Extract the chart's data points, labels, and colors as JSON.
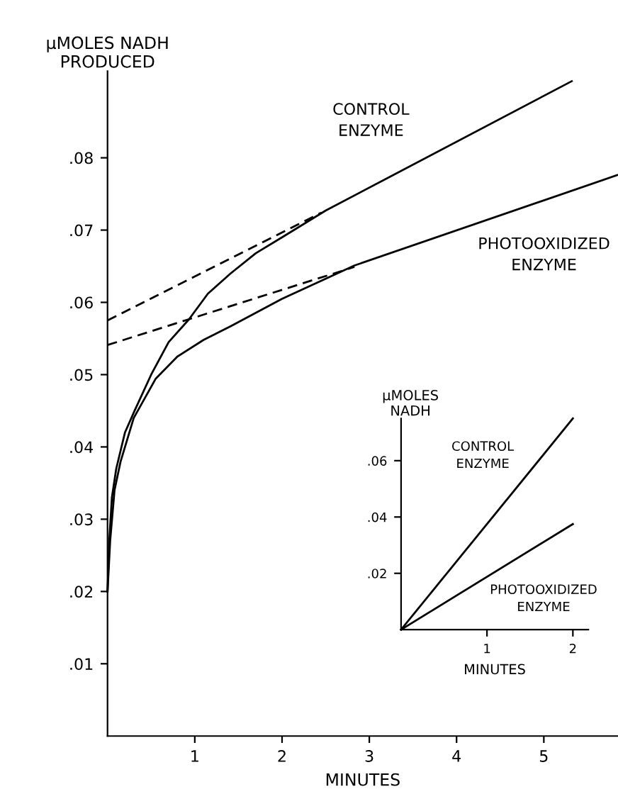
{
  "chart_data": [
    {
      "type": "line",
      "xlabel": "MINUTES",
      "ylabel": "µMOLES NADH\nPRODUCED",
      "xlim": [
        0,
        5.85
      ],
      "ylim": [
        0,
        0.092
      ],
      "xticks": [
        1,
        2,
        3,
        4,
        5
      ],
      "yticks": [
        {
          "value": 0.01,
          "label": ".01"
        },
        {
          "value": 0.02,
          "label": ".02"
        },
        {
          "value": 0.03,
          "label": ".03"
        },
        {
          "value": 0.04,
          "label": ".04"
        },
        {
          "value": 0.05,
          "label": ".05"
        },
        {
          "value": 0.06,
          "label": ".06"
        },
        {
          "value": 0.07,
          "label": ".07"
        },
        {
          "value": 0.08,
          "label": ".08"
        }
      ],
      "grid": false,
      "legend": false,
      "marker": "none",
      "series": [
        {
          "color": "#000000",
          "line_style": "solid",
          "x": [
            0,
            0.02,
            0.05,
            0.1,
            0.2,
            0.31,
            0.5,
            0.7,
            0.93,
            1.15,
            1.41,
            1.7,
            2,
            2.5,
            5.32
          ],
          "values": [
            0.02,
            0.027,
            0.033,
            0.037,
            0.042,
            0.045,
            0.05,
            0.0545,
            0.0576,
            0.0612,
            0.064,
            0.0668,
            0.069,
            0.0727,
            0.0906
          ]
        },
        {
          "color": "#000000",
          "line_style": "solid",
          "x": [
            0,
            0.03,
            0.08,
            0.15,
            0.3,
            0.55,
            0.8,
            1.1,
            1.41,
            2.0,
            2.83,
            5.84
          ],
          "values": [
            0.02,
            0.027,
            0.034,
            0.038,
            0.044,
            0.0494,
            0.0525,
            0.0548,
            0.0567,
            0.0605,
            0.0651,
            0.0776
          ]
        },
        {
          "color": "#000000",
          "line_style": "dashed",
          "x": [
            0,
            2.45
          ],
          "values": [
            0.0575,
            0.0724
          ]
        },
        {
          "color": "#000000",
          "line_style": "dashed",
          "x": [
            0,
            2.83
          ],
          "values": [
            0.0541,
            0.0649
          ]
        }
      ],
      "annotations": [
        "CONTROL\nENZYME",
        "PHOTOOXIDIZED\nENZYME"
      ]
    },
    {
      "type": "line",
      "xlabel": "MINUTES",
      "ylabel": "µMOLES\nNADH",
      "xlim": [
        0,
        2.18
      ],
      "ylim": [
        0,
        0.075
      ],
      "xticks": [
        1,
        2
      ],
      "yticks": [
        {
          "value": 0.02,
          "label": ".02"
        },
        {
          "value": 0.04,
          "label": ".04"
        },
        {
          "value": 0.06,
          "label": ".06"
        }
      ],
      "grid": false,
      "legend": false,
      "marker": "none",
      "series": [
        {
          "color": "#000000",
          "line_style": "solid",
          "x": [
            0,
            2.0
          ],
          "values": [
            0,
            0.075
          ]
        },
        {
          "color": "#000000",
          "line_style": "solid",
          "x": [
            0,
            2.0
          ],
          "values": [
            0,
            0.0375
          ]
        }
      ],
      "annotations": [
        "CONTROL\nENZYME",
        "PHOTOOXIDIZED\nENZYME"
      ]
    }
  ]
}
